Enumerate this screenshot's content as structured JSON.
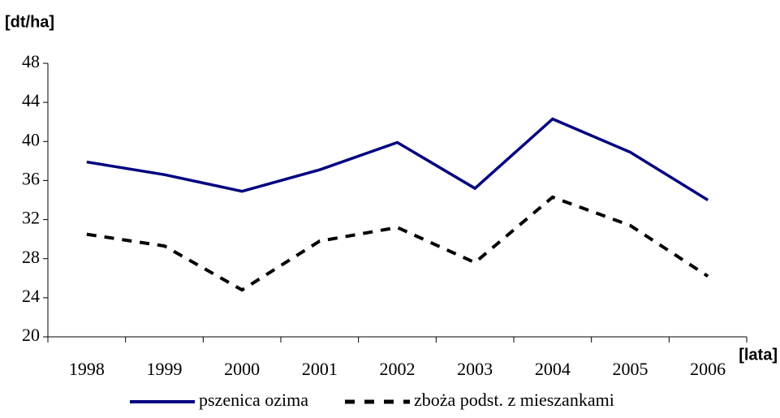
{
  "chart_data": {
    "type": "line",
    "y_label": "[dt/ha]",
    "x_label": "[lata]",
    "categories": [
      "1998",
      "1999",
      "2000",
      "2001",
      "2002",
      "2003",
      "2004",
      "2005",
      "2006"
    ],
    "series": [
      {
        "name": "pszenica ozima",
        "color": "#000080",
        "dash": "solid",
        "values": [
          37.9,
          36.6,
          34.9,
          37.1,
          39.9,
          35.2,
          42.3,
          38.9,
          34.0
        ]
      },
      {
        "name": "zboża podst. z mieszankami",
        "color": "#000000",
        "dash": "dashed",
        "values": [
          30.5,
          29.3,
          24.8,
          29.8,
          31.2,
          27.6,
          34.3,
          31.4,
          26.2
        ]
      }
    ],
    "ylim": [
      20,
      48
    ],
    "yticks": [
      20,
      24,
      28,
      32,
      36,
      40,
      44,
      48
    ],
    "grid": false,
    "legend": "bottom"
  }
}
